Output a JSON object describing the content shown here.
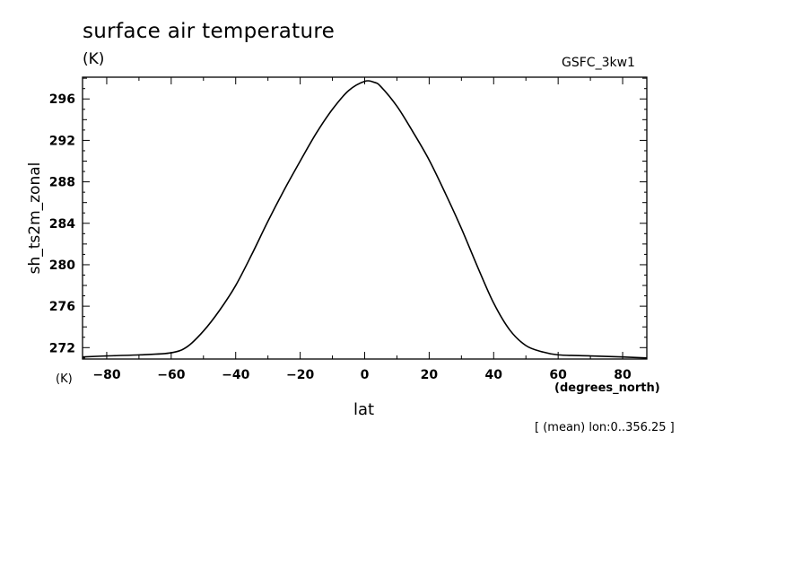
{
  "chart_data": {
    "type": "line",
    "title": "surface air temperature",
    "units": "(K)",
    "model": "GSFC_3kw1",
    "ylabel": "sh_ts2m_zonal",
    "yunits": "(K)",
    "xlabel": "lat",
    "xunits": "(degrees_north)",
    "note": "[ (mean) lon:0..356.25 ]",
    "xlim": [
      -87.5,
      87.5
    ],
    "ylim": [
      270.9,
      298.1
    ],
    "xticks": [
      -80,
      -60,
      -40,
      -20,
      0,
      20,
      40,
      60,
      80
    ],
    "yticks": [
      272,
      276,
      280,
      284,
      288,
      292,
      296
    ],
    "grid": false,
    "series": [
      {
        "x": [
          -87.5,
          -80,
          -70,
          -60,
          -55,
          -50,
          -45,
          -40,
          -35,
          -30,
          -25,
          -20,
          -15,
          -10,
          -5,
          0,
          3,
          5,
          10,
          15,
          20,
          25,
          30,
          35,
          40,
          45,
          50,
          55,
          60,
          70,
          80,
          87.5
        ],
        "y": [
          271.1,
          271.2,
          271.3,
          271.5,
          272.1,
          273.6,
          275.6,
          278.0,
          281.0,
          284.2,
          287.2,
          290.0,
          292.7,
          295.0,
          296.8,
          297.7,
          297.6,
          297.2,
          295.3,
          292.8,
          290.1,
          286.9,
          283.5,
          279.8,
          276.3,
          273.7,
          272.2,
          271.6,
          271.3,
          271.2,
          271.1,
          271.0
        ]
      }
    ]
  }
}
